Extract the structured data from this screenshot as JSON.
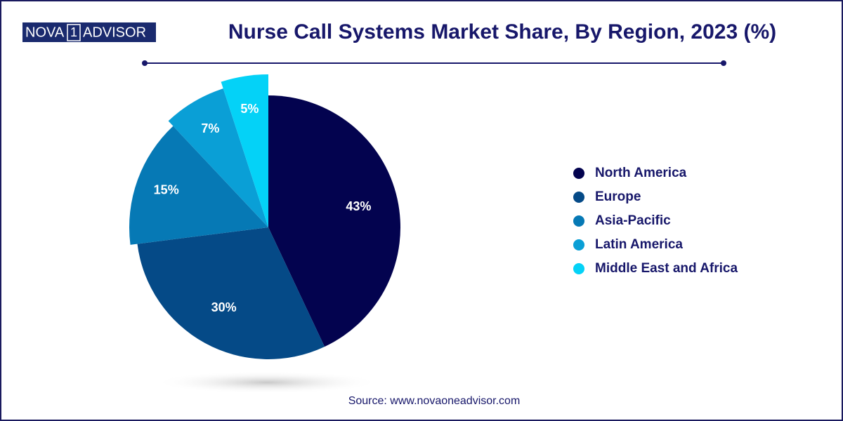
{
  "logo": {
    "left": "NOVA",
    "mid": "1",
    "right": "ADVISOR"
  },
  "chart_data": {
    "type": "pie",
    "title": "Nurse Call Systems Market Share, By Region, 2023 (%)",
    "categories": [
      "North America",
      "Europe",
      "Asia-Pacific",
      "Latin America",
      "Middle East and Africa"
    ],
    "values": [
      43,
      30,
      15,
      7,
      5
    ],
    "value_labels": [
      "43%",
      "30%",
      "15%",
      "7%",
      "5%"
    ],
    "colors": [
      "#03034f",
      "#054a87",
      "#0679b5",
      "#0a9fd6",
      "#04d2f7"
    ],
    "source": "Source: www.novaoneadvisor.com"
  }
}
